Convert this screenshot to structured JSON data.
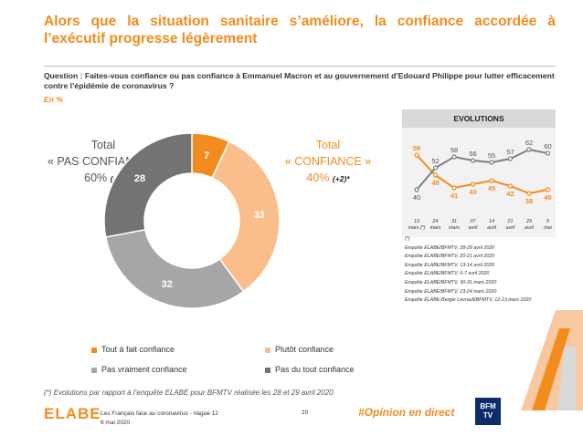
{
  "title": "Alors que la situation sanitaire s’améliore, la confiance accordée à l’exécutif progresse légèrement",
  "question": "Question : Faites-vous confiance ou pas confiance à Emmanuel Macron et au gouvernement d’Edouard Philippe pour lutter efficacement contre l’épidémie de coronavirus ?",
  "unit": "En %",
  "totals": {
    "no_confidence": {
      "line1": "Total",
      "line2": "« PAS CONFIANCE »",
      "value": "60%",
      "delta": "(-2)"
    },
    "confidence": {
      "line1": "Total",
      "line2": "« CONFIANCE »",
      "value": "40%",
      "delta": "(+2)*"
    }
  },
  "chart_data": [
    {
      "type": "pie",
      "categories": [
        "Tout à fait confiance",
        "Plutôt confiance",
        "Pas vraiment confiance",
        "Pas du tout confiance"
      ],
      "values": [
        7,
        33,
        32,
        28
      ],
      "colors": [
        "#F28C1E",
        "#F9BE8C",
        "#A6A6A6",
        "#737373"
      ],
      "legend": "bottom"
    },
    {
      "type": "line",
      "title": "EVOLUTIONS",
      "x": [
        "13 mars (*)",
        "24 mars",
        "31 mars",
        "07 avril",
        "14 avril",
        "21 avril",
        "29 avril",
        "5 mai"
      ],
      "series": [
        {
          "values": [
            59,
            48,
            41,
            43,
            45,
            42,
            38,
            40
          ],
          "color": "#F28C1E"
        },
        {
          "values": [
            40,
            52,
            58,
            56,
            55,
            57,
            62,
            60
          ],
          "color": "#7f7f7f"
        }
      ],
      "ylim": [
        30,
        70
      ]
    }
  ],
  "sources": [
    "(*)",
    "Enquête ELABE/BFMTV, 28-29 avril 2020",
    "Enquête ELABE/BFMTV, 20-21 avril 2020",
    "Enquête ELABE/BFMTV, 13-14 avril 2020",
    "Enquête ELABE/BFMTV, 6-7 avril 2020",
    "Enquête ELABE/BFMTV, 30-31 mars 2020",
    "Enquête ELABE/BFMTV, 23-24 mars 2020",
    "Enquête ELABE-Berger Levrault/BFMTV, 12-13 mars 2020"
  ],
  "footnote": "(*) Evolutions par rapport à l’enquête ELABE pour BFMTV réalisée les 28 et 29 avril 2020",
  "footer": {
    "logo": "ELABE",
    "line1": "Les Français face au coronavirus - Vague 12",
    "line2": "6 mai 2020",
    "page": "20",
    "hashtag": "#Opinion en direct",
    "bfm_line1": "BFM",
    "bfm_line2": "TV"
  }
}
